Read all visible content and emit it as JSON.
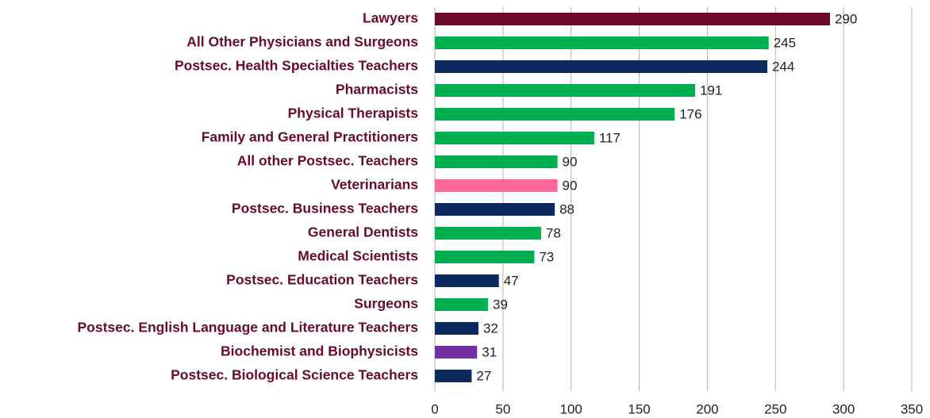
{
  "chart_data": {
    "type": "bar",
    "orientation": "horizontal",
    "categories": [
      "Lawyers",
      "All Other Physicians and Surgeons",
      "Postsec. Health Specialties Teachers",
      "Pharmacists",
      "Physical Therapists",
      "Family and General Practitioners",
      "All other Postsec. Teachers",
      "Veterinarians",
      "Postsec. Business Teachers",
      "General Dentists",
      "Medical Scientists",
      "Postsec. Education Teachers",
      "Surgeons",
      "Postsec. English Language and Literature Teachers",
      "Biochemist and Biophysicists",
      "Postsec. Biological Science Teachers"
    ],
    "values": [
      290,
      245,
      244,
      191,
      176,
      117,
      90,
      90,
      88,
      78,
      73,
      47,
      39,
      32,
      31,
      27
    ],
    "colors": [
      "#6b0a2a",
      "#00b050",
      "#0d2a5e",
      "#00b050",
      "#00b050",
      "#00b050",
      "#00b050",
      "#ff6699",
      "#0d2a5e",
      "#00b050",
      "#00b050",
      "#0d2a5e",
      "#00b050",
      "#0d2a5e",
      "#7030a0",
      "#0d2a5e"
    ],
    "xlim": [
      0,
      350
    ],
    "xticks": [
      0,
      50,
      100,
      150,
      200,
      250,
      300,
      350
    ],
    "grid": true
  }
}
